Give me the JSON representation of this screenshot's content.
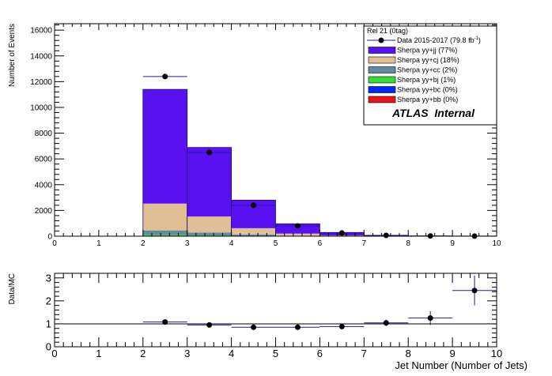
{
  "chart_data": [
    {
      "type": "bar",
      "stacked": true,
      "ylabel": "Number of Events",
      "xlim": [
        0,
        10
      ],
      "ylim": [
        0,
        16500
      ],
      "x_ticks": [
        "0",
        "1",
        "2",
        "3",
        "4",
        "5",
        "6",
        "7",
        "8",
        "9",
        "10"
      ],
      "y_ticks": [
        "0",
        "2000",
        "4000",
        "6000",
        "8000",
        "10000",
        "12000",
        "14000",
        "16000"
      ],
      "bins": [
        [
          2,
          3
        ],
        [
          3,
          4
        ],
        [
          4,
          5
        ],
        [
          5,
          6
        ],
        [
          6,
          7
        ],
        [
          7,
          8
        ],
        [
          8,
          9
        ],
        [
          9,
          10
        ]
      ],
      "series": [
        {
          "name": "Sherpa yy+bb (0%)",
          "color": "#e8151b",
          "values": [
            0,
            0,
            0,
            0,
            0,
            0,
            0,
            0
          ]
        },
        {
          "name": "Sherpa yy+bc (0%)",
          "color": "#0026ff",
          "values": [
            0,
            0,
            0,
            0,
            0,
            0,
            0,
            0
          ]
        },
        {
          "name": "Sherpa yy+bj (1%)",
          "color": "#34dd34",
          "values": [
            100,
            60,
            30,
            12,
            5,
            2,
            0,
            0
          ]
        },
        {
          "name": "Sherpa yy+cc (2%)",
          "color": "#5f8ca3",
          "values": [
            350,
            220,
            90,
            30,
            10,
            3,
            1,
            0
          ]
        },
        {
          "name": "Sherpa yy+cj (18%)",
          "color": "#e0bf96",
          "values": [
            2080,
            1250,
            500,
            160,
            45,
            10,
            2,
            0
          ]
        },
        {
          "name": "Sherpa yy+jj (77%)",
          "color": "#5a11f2",
          "values": [
            8870,
            5360,
            2180,
            760,
            230,
            55,
            12,
            2
          ]
        }
      ],
      "data_points": {
        "name": "Data 2015-2017 (79.8 fb",
        "name_sup": "-1",
        "name_close": ")",
        "x": [
          2.5,
          3.5,
          4.5,
          5.5,
          6.5,
          7.5,
          8.5,
          9.5
        ],
        "y": [
          12400,
          6500,
          2400,
          800,
          250,
          65,
          18,
          5
        ]
      },
      "legend_header": "Rel 21 (0tag)",
      "legend_placement": "top-right",
      "annotation": "ATLAS  Internal"
    },
    {
      "type": "scatter",
      "ylabel": "Data/MC",
      "xlabel": "Jet Number (Number of Jets)",
      "xlim": [
        0,
        10
      ],
      "ylim": [
        0,
        3.2
      ],
      "x_ticks": [
        "0",
        "1",
        "2",
        "3",
        "4",
        "5",
        "6",
        "7",
        "8",
        "9",
        "10"
      ],
      "y_ticks": [
        "0",
        "1",
        "2",
        "3"
      ],
      "reference_line": 1,
      "x": [
        2.5,
        3.5,
        4.5,
        5.5,
        6.5,
        7.5,
        8.5,
        9.5
      ],
      "y": [
        1.08,
        0.95,
        0.85,
        0.85,
        0.88,
        1.04,
        1.25,
        2.45
      ],
      "y_err": [
        0.01,
        0.015,
        0.02,
        0.04,
        0.07,
        0.14,
        0.3,
        0.65
      ]
    }
  ]
}
